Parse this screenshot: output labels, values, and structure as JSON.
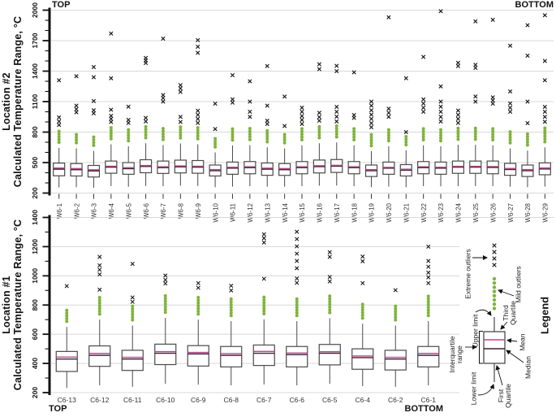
{
  "figure": {
    "panel1": {
      "corner_top_left": "TOP",
      "corner_top_right": "BOTTOM",
      "axis_title_outer": "Location #2",
      "axis_title_inner": "Calculated Temperature Range, °C"
    },
    "panel2": {
      "corner_bottom_left": "TOP",
      "corner_bottom_right": "BOTTOM",
      "axis_title_outer": "Location #1",
      "axis_title_inner": "Calculated Temperature Range, °C"
    },
    "legend": {
      "title": "Legend",
      "extreme_outliers": "Extreme outliers",
      "mild_outliers": "Mild outliers",
      "upper_limit": "Upper limit",
      "lower_limit": "Lower limit",
      "mean": "Mean",
      "median": "Median",
      "third_quartile": [
        "Third",
        "Quartile"
      ],
      "first_quartile": [
        "First",
        "Quartile"
      ],
      "interquartile_range": [
        "Interquartile",
        "range"
      ]
    }
  },
  "colors": {
    "mild_outlier": "#7fb43c",
    "mean_line": "#b5498a",
    "median_line": "#3d2130",
    "box_stroke": "#4a4a4a",
    "whisker": "#4a4a4a",
    "gridline": "#d8d8d8",
    "axis": "#111111",
    "extreme_marker": "#1a1a1a",
    "category_label": "#333333"
  },
  "chart_data": [
    {
      "type": "box",
      "panel_id": "panel1-location2",
      "location_label": "Location #2",
      "ylabel": "Calculated Temperature Range, °C",
      "flow_labels": {
        "left_top": "TOP",
        "right_top": "BOTTOM"
      },
      "ylim": [
        200,
        2000
      ],
      "yticks": [
        200,
        500,
        800,
        1100,
        1400,
        1700,
        2000
      ],
      "minor_step": 100,
      "grid": true,
      "categories": [
        "W6-1",
        "W6-2",
        "W6-3",
        "W6-4",
        "W6-5",
        "W6-6",
        "W6-7",
        "W6-8",
        "W6-9",
        "W6-10",
        "W6-11",
        "W6-12",
        "W6-13",
        "W6-14",
        "W6-15",
        "W6-16",
        "W6-17",
        "W6-18",
        "W6-19",
        "W6-20",
        "W6-21",
        "W6-22",
        "W6-23",
        "W6-24",
        "W6-25",
        "W6-26",
        "W6-27",
        "W6-28",
        "W6-29"
      ],
      "boxes": [
        {
          "name": "W6-1",
          "q1": 370,
          "median": 435,
          "mean": 446,
          "q3": 495,
          "lo": 255,
          "hi": 645,
          "mild_max": 820,
          "extremes": [
            870,
            905,
            945,
            1310
          ]
        },
        {
          "name": "W6-2",
          "q1": 368,
          "median": 430,
          "mean": 441,
          "q3": 490,
          "lo": 258,
          "hi": 640,
          "mild_max": 800,
          "extremes": [
            995,
            1025,
            1060,
            1350
          ]
        },
        {
          "name": "W6-3",
          "q1": 358,
          "median": 418,
          "mean": 429,
          "q3": 472,
          "lo": 252,
          "hi": 615,
          "mild_max": 765,
          "extremes": [
            985,
            1015,
            1105,
            1340,
            1440
          ]
        },
        {
          "name": "W6-4",
          "q1": 395,
          "median": 455,
          "mean": 464,
          "q3": 515,
          "lo": 268,
          "hi": 680,
          "mild_max": 865,
          "extremes": [
            900,
            930,
            960,
            1020,
            1330,
            1770
          ]
        },
        {
          "name": "W6-5",
          "q1": 385,
          "median": 440,
          "mean": 450,
          "q3": 500,
          "lo": 262,
          "hi": 660,
          "mild_max": 840,
          "extremes": [
            890,
            920,
            1050
          ]
        },
        {
          "name": "W6-6",
          "q1": 400,
          "median": 462,
          "mean": 471,
          "q3": 528,
          "lo": 270,
          "hi": 690,
          "mild_max": 862,
          "extremes": [
            905,
            940,
            1480,
            1505,
            1530
          ]
        },
        {
          "name": "W6-7",
          "q1": 393,
          "median": 450,
          "mean": 459,
          "q3": 515,
          "lo": 268,
          "hi": 672,
          "mild_max": 850,
          "extremes": [
            1100,
            1135,
            1165,
            1720
          ]
        },
        {
          "name": "W6-8",
          "q1": 398,
          "median": 458,
          "mean": 467,
          "q3": 524,
          "lo": 272,
          "hi": 688,
          "mild_max": 860,
          "extremes": [
            900,
            950,
            1195,
            1230,
            1262
          ]
        },
        {
          "name": "W6-9",
          "q1": 395,
          "median": 455,
          "mean": 464,
          "q3": 520,
          "lo": 270,
          "hi": 680,
          "mild_max": 852,
          "extremes": [
            890,
            930,
            970,
            1010,
            1580,
            1640,
            1705
          ]
        },
        {
          "name": "W6-10",
          "q1": 368,
          "median": 420,
          "mean": 431,
          "q3": 476,
          "lo": 258,
          "hi": 600,
          "mild_max": 742,
          "extremes": [
            830,
            1080
          ]
        },
        {
          "name": "W6-11",
          "q1": 385,
          "median": 445,
          "mean": 454,
          "q3": 505,
          "lo": 263,
          "hi": 668,
          "mild_max": 848,
          "extremes": [
            1090,
            1122,
            1360
          ]
        },
        {
          "name": "W6-12",
          "q1": 390,
          "median": 450,
          "mean": 459,
          "q3": 510,
          "lo": 268,
          "hi": 672,
          "mild_max": 840,
          "extremes": [
            950,
            1000,
            1100,
            1300
          ]
        },
        {
          "name": "W6-13",
          "q1": 375,
          "median": 435,
          "mean": 445,
          "q3": 496,
          "lo": 263,
          "hi": 650,
          "mild_max": 830,
          "extremes": [
            880,
            912,
            1060,
            1450
          ]
        },
        {
          "name": "W6-14",
          "q1": 374,
          "median": 430,
          "mean": 441,
          "q3": 490,
          "lo": 262,
          "hi": 640,
          "mild_max": 782,
          "extremes": [
            860,
            1150
          ]
        },
        {
          "name": "W6-15",
          "q1": 390,
          "median": 450,
          "mean": 459,
          "q3": 510,
          "lo": 268,
          "hi": 670,
          "mild_max": 858,
          "extremes": [
            880,
            920,
            958,
            1000,
            1040
          ]
        },
        {
          "name": "W6-16",
          "q1": 398,
          "median": 460,
          "mean": 469,
          "q3": 525,
          "lo": 272,
          "hi": 690,
          "mild_max": 868,
          "extremes": [
            912,
            948,
            990,
            1420,
            1468
          ]
        },
        {
          "name": "W6-17",
          "q1": 403,
          "median": 465,
          "mean": 473,
          "q3": 530,
          "lo": 274,
          "hi": 698,
          "mild_max": 870,
          "extremes": [
            905,
            952,
            1000,
            1048,
            1400,
            1452
          ]
        },
        {
          "name": "W6-18",
          "q1": 390,
          "median": 450,
          "mean": 459,
          "q3": 510,
          "lo": 268,
          "hi": 670,
          "mild_max": 840,
          "extremes": [
            940,
            968,
            1388
          ]
        },
        {
          "name": "W6-19",
          "q1": 363,
          "median": 420,
          "mean": 431,
          "q3": 476,
          "lo": 258,
          "hi": 612,
          "mild_max": 800,
          "extremes": [
            848,
            888,
            930,
            972,
            1015,
            1060,
            1100
          ]
        },
        {
          "name": "W6-20",
          "q1": 385,
          "median": 445,
          "mean": 453,
          "q3": 505,
          "lo": 264,
          "hi": 660,
          "mild_max": 840,
          "extremes": [
            950,
            990,
            1030,
            1930
          ]
        },
        {
          "name": "W6-21",
          "q1": 368,
          "median": 425,
          "mean": 435,
          "q3": 480,
          "lo": 258,
          "hi": 620,
          "mild_max": 762,
          "extremes": [
            800,
            1330
          ]
        },
        {
          "name": "W6-22",
          "q1": 390,
          "median": 450,
          "mean": 459,
          "q3": 510,
          "lo": 268,
          "hi": 670,
          "mild_max": 850,
          "extremes": [
            1000,
            1040,
            1082,
            1122,
            1540
          ]
        },
        {
          "name": "W6-23",
          "q1": 385,
          "median": 445,
          "mean": 454,
          "q3": 505,
          "lo": 266,
          "hi": 660,
          "mild_max": 842,
          "extremes": [
            905,
            950,
            1000,
            1050,
            1100,
            1250,
            1990
          ]
        },
        {
          "name": "W6-24",
          "q1": 394,
          "median": 455,
          "mean": 463,
          "q3": 515,
          "lo": 268,
          "hi": 675,
          "mild_max": 852,
          "extremes": [
            890,
            930,
            970,
            1012,
            1450,
            1482
          ]
        },
        {
          "name": "W6-25",
          "q1": 394,
          "median": 455,
          "mean": 463,
          "q3": 515,
          "lo": 268,
          "hi": 675,
          "mild_max": 850,
          "extremes": [
            1100,
            1150,
            1432,
            1462,
            1890
          ]
        },
        {
          "name": "W6-26",
          "q1": 390,
          "median": 452,
          "mean": 461,
          "q3": 515,
          "lo": 268,
          "hi": 670,
          "mild_max": 860,
          "extremes": [
            1080,
            1112,
            1142,
            1905
          ]
        },
        {
          "name": "W6-27",
          "q1": 375,
          "median": 432,
          "mean": 442,
          "q3": 492,
          "lo": 262,
          "hi": 640,
          "mild_max": 822,
          "extremes": [
            1000,
            1040,
            1082,
            1200,
            1650
          ]
        },
        {
          "name": "W6-28",
          "q1": 363,
          "median": 420,
          "mean": 431,
          "q3": 476,
          "lo": 258,
          "hi": 618,
          "mild_max": 790,
          "extremes": [
            888,
            1100,
            1552,
            1852
          ]
        },
        {
          "name": "W6-29",
          "q1": 380,
          "median": 437,
          "mean": 447,
          "q3": 497,
          "lo": 264,
          "hi": 650,
          "mild_max": 858,
          "extremes": [
            902,
            950,
            1000,
            1048,
            1310,
            1500,
            1950
          ]
        }
      ]
    },
    {
      "type": "box",
      "panel_id": "panel2-location1",
      "location_label": "Location #1",
      "ylabel": "Calculated Temperature Range, °C",
      "flow_labels": {
        "left_bottom": "TOP",
        "right_bottom": "BOTTOM"
      },
      "ylim": [
        200,
        1400
      ],
      "yticks": [
        200,
        400,
        600,
        800,
        1000,
        1200,
        1400
      ],
      "minor_step": 100,
      "grid": true,
      "categories": [
        "C6-13",
        "C6-12",
        "C6-11",
        "C6-10",
        "C6-9",
        "C6-8",
        "C6-7",
        "C6-6",
        "C6-5",
        "C6-4",
        "C6-2",
        "C6-1"
      ],
      "boxes": [
        {
          "name": "C6-13",
          "q1": 345,
          "median": 430,
          "mean": 443,
          "q3": 482,
          "lo": 232,
          "hi": 650,
          "mild_max": 780,
          "extremes": [
            930
          ]
        },
        {
          "name": "C6-12",
          "q1": 380,
          "median": 455,
          "mean": 468,
          "q3": 520,
          "lo": 250,
          "hi": 700,
          "mild_max": 868,
          "extremes": [
            905,
            1010,
            1042,
            1072,
            1130
          ]
        },
        {
          "name": "C6-11",
          "q1": 352,
          "median": 430,
          "mean": 442,
          "q3": 490,
          "lo": 240,
          "hi": 660,
          "mild_max": 800,
          "extremes": [
            822,
            852,
            1082
          ]
        },
        {
          "name": "C6-10",
          "q1": 392,
          "median": 470,
          "mean": 481,
          "q3": 532,
          "lo": 260,
          "hi": 712,
          "mild_max": 880,
          "extremes": [
            948,
            972,
            1002
          ]
        },
        {
          "name": "C6-9",
          "q1": 382,
          "median": 465,
          "mean": 475,
          "q3": 522,
          "lo": 255,
          "hi": 700,
          "mild_max": 862,
          "extremes": [
            918,
            950
          ]
        },
        {
          "name": "C6-8",
          "q1": 376,
          "median": 455,
          "mean": 467,
          "q3": 516,
          "lo": 250,
          "hi": 690,
          "mild_max": 850,
          "extremes": [
            900,
            932
          ]
        },
        {
          "name": "C6-7",
          "q1": 386,
          "median": 470,
          "mean": 482,
          "q3": 526,
          "lo": 256,
          "hi": 702,
          "mild_max": 868,
          "extremes": [
            980,
            1228,
            1258,
            1285
          ]
        },
        {
          "name": "C6-6",
          "q1": 376,
          "median": 460,
          "mean": 471,
          "q3": 516,
          "lo": 250,
          "hi": 690,
          "mild_max": 860,
          "extremes": [
            952,
            982,
            1052,
            1102,
            1152,
            1202,
            1252,
            1302
          ]
        },
        {
          "name": "C6-5",
          "q1": 390,
          "median": 470,
          "mean": 480,
          "q3": 530,
          "lo": 260,
          "hi": 710,
          "mild_max": 878,
          "extremes": [
            962,
            992,
            1130,
            1162
          ]
        },
        {
          "name": "C6-4",
          "q1": 360,
          "median": 440,
          "mean": 451,
          "q3": 500,
          "lo": 245,
          "hi": 672,
          "mild_max": 820,
          "extremes": [
            950,
            1100,
            1132
          ]
        },
        {
          "name": "C6-2",
          "q1": 355,
          "median": 430,
          "mean": 442,
          "q3": 490,
          "lo": 240,
          "hi": 660,
          "mild_max": 800,
          "extremes": [
            902
          ]
        },
        {
          "name": "C6-1",
          "q1": 376,
          "median": 455,
          "mean": 468,
          "q3": 516,
          "lo": 250,
          "hi": 690,
          "mild_max": 868,
          "extremes": [
            950,
            990,
            1022,
            1062,
            1102,
            1200
          ]
        }
      ]
    }
  ]
}
